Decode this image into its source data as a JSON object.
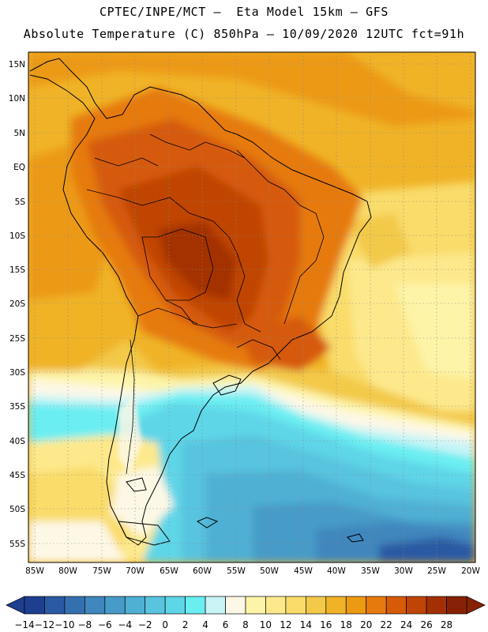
{
  "header": {
    "line1": "CPTEC/INPE/MCT –  Eta Model 15km – GFS",
    "line2": "Absolute Temperature (C) 850hPa – 10/09/2020 12UTC fct=91h"
  },
  "axes": {
    "lat_labels": [
      "15N",
      "10N",
      "5N",
      "EQ",
      "5S",
      "10S",
      "15S",
      "20S",
      "25S",
      "30S",
      "35S",
      "40S",
      "45S",
      "50S",
      "55S"
    ],
    "lat_values": [
      15,
      10,
      5,
      0,
      -5,
      -10,
      -15,
      -20,
      -25,
      -30,
      -35,
      -40,
      -45,
      -50,
      -55
    ],
    "lon_labels": [
      "85W",
      "80W",
      "75W",
      "70W",
      "65W",
      "60W",
      "55W",
      "50W",
      "45W",
      "40W",
      "35W",
      "30W",
      "25W",
      "20W"
    ],
    "lon_values": [
      -85,
      -80,
      -75,
      -70,
      -65,
      -60,
      -55,
      -50,
      -45,
      -40,
      -35,
      -30,
      -25,
      -20
    ],
    "lat_range": [
      -58,
      17
    ],
    "lon_range": [
      -86,
      -19
    ]
  },
  "colorbar": {
    "labels": [
      "-14",
      "-12",
      "-10",
      "-8",
      "-6",
      "-4",
      "-2",
      "0",
      "2",
      "4",
      "6",
      "8",
      "10",
      "12",
      "14",
      "16",
      "18",
      "20",
      "22",
      "24",
      "26",
      "28"
    ],
    "colors": [
      "#1e3f8f",
      "#2a5aa3",
      "#3470b0",
      "#3f87be",
      "#479bc8",
      "#4fb0d4",
      "#58c4df",
      "#5fd6e8",
      "#6aeef2",
      "#c8f4f6",
      "#fdf8e6",
      "#fdf4a8",
      "#fde98c",
      "#f9dc6a",
      "#f3c94a",
      "#f0b328",
      "#ec9a12",
      "#e67a0c",
      "#d65a08",
      "#c04406",
      "#a33004",
      "#862203"
    ]
  },
  "chart_data": {
    "type": "heatmap",
    "title": "Absolute Temperature (C) 850hPa",
    "model": "Eta Model 15km - GFS",
    "institution": "CPTEC/INPE/MCT",
    "date": "10/09/2020 12UTC",
    "forecast": "fct=91h",
    "units": "C",
    "levels": [
      -14,
      -12,
      -10,
      -8,
      -6,
      -4,
      -2,
      0,
      2,
      4,
      6,
      8,
      10,
      12,
      14,
      16,
      18,
      20,
      22,
      24,
      26,
      28
    ],
    "regions": [
      {
        "name": "central Brazil / Bolivia",
        "value_range": [
          24,
          26
        ]
      },
      {
        "name": "Amazon basin",
        "value_range": [
          22,
          24
        ]
      },
      {
        "name": "northeast Brazil coast",
        "value_range": [
          14,
          18
        ]
      },
      {
        "name": "Atlantic east of 35W, 20S-30S",
        "value_range": [
          8,
          12
        ]
      },
      {
        "name": "northern Argentina",
        "value_range": [
          16,
          20
        ]
      },
      {
        "name": "Patagonia",
        "value_range": [
          0,
          6
        ]
      },
      {
        "name": "South Atlantic 40S-55S",
        "value_range": [
          -6,
          0
        ]
      },
      {
        "name": "far southeast Atlantic",
        "value_range": [
          -14,
          -10
        ]
      }
    ]
  }
}
